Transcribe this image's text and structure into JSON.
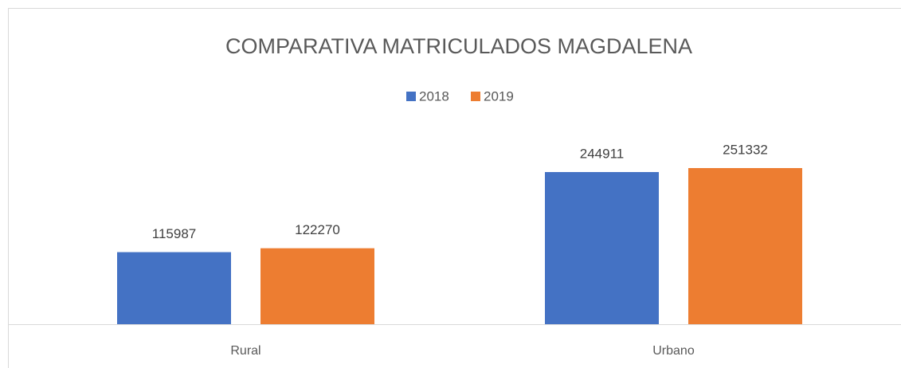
{
  "chart_data": {
    "type": "bar",
    "title": "COMPARATIVA MATRICULADOS MAGDALENA",
    "categories": [
      "Rural",
      "Urbano"
    ],
    "series": [
      {
        "name": "2018",
        "color": "#4472c4",
        "values": [
          115987,
          244911
        ]
      },
      {
        "name": "2019",
        "color": "#ed7d31",
        "values": [
          122270,
          251332
        ]
      }
    ],
    "legend": "top"
  }
}
